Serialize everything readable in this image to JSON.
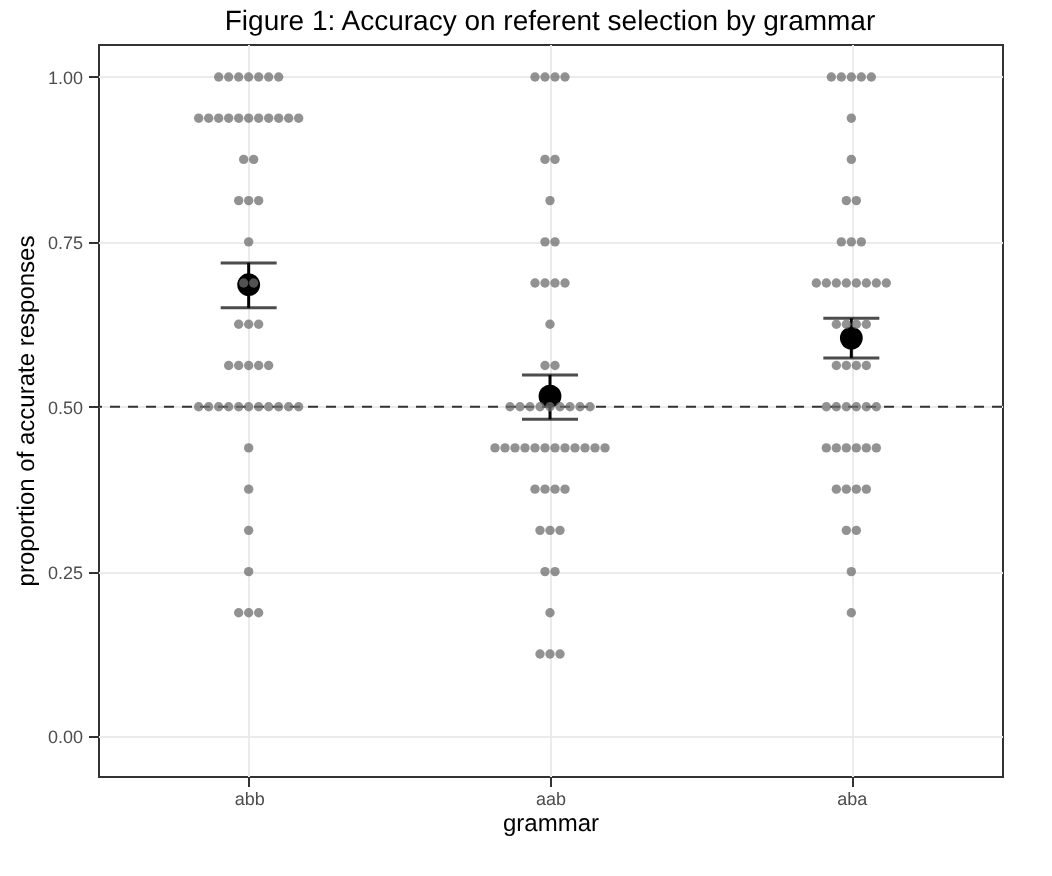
{
  "chart_data": {
    "type": "scatter",
    "title": "Figure 1: Accuracy on referent selection by grammar",
    "xlabel": "grammar",
    "ylabel": "proportion of accurate responses",
    "categories": [
      "abb",
      "aab",
      "aba"
    ],
    "ylim": [
      -0.06,
      1.05
    ],
    "yticks": [
      {
        "value": 0,
        "label": "0.00"
      },
      {
        "value": 0.25,
        "label": "0.25"
      },
      {
        "value": 0.5,
        "label": "0.50"
      },
      {
        "value": 0.75,
        "label": "0.75"
      },
      {
        "value": 1,
        "label": "1.00"
      }
    ],
    "grid": true,
    "marker": "circle",
    "ref_lines": [
      {
        "axis": "y",
        "value": 0.5,
        "line_style": "dashed",
        "color": "#333333"
      }
    ],
    "series": [
      {
        "color": "#6e6e6e",
        "x": [
          "abb",
          "abb",
          "abb",
          "abb",
          "abb",
          "abb",
          "abb",
          "abb",
          "abb",
          "abb",
          "abb",
          "abb",
          "abb",
          "abb",
          "abb",
          "abb",
          "abb",
          "abb",
          "abb",
          "abb",
          "abb",
          "abb",
          "abb",
          "abb",
          "abb",
          "abb",
          "abb",
          "abb",
          "abb",
          "abb",
          "abb",
          "abb",
          "abb",
          "abb",
          "abb",
          "abb",
          "abb",
          "abb",
          "abb",
          "abb",
          "abb",
          "abb",
          "abb",
          "abb",
          "abb",
          "abb",
          "abb",
          "abb",
          "abb",
          "abb",
          "abb",
          "abb"
        ],
        "values": [
          1,
          1,
          1,
          1,
          1,
          1,
          1,
          0.9375,
          0.9375,
          0.9375,
          0.9375,
          0.9375,
          0.9375,
          0.9375,
          0.9375,
          0.9375,
          0.9375,
          0.9375,
          0.875,
          0.875,
          0.8125,
          0.8125,
          0.8125,
          0.75,
          0.6875,
          0.6875,
          0.625,
          0.625,
          0.625,
          0.5625,
          0.5625,
          0.5625,
          0.5625,
          0.5625,
          0.5,
          0.5,
          0.5,
          0.5,
          0.5,
          0.5,
          0.5,
          0.5,
          0.5,
          0.5,
          0.5,
          0.4375,
          0.375,
          0.3125,
          0.25,
          0.1875,
          0.1875,
          0.1875
        ]
      },
      {
        "color": "#6e6e6e",
        "x": [
          "aab",
          "aab",
          "aab",
          "aab",
          "aab",
          "aab",
          "aab",
          "aab",
          "aab",
          "aab",
          "aab",
          "aab",
          "aab",
          "aab",
          "aab",
          "aab",
          "aab",
          "aab",
          "aab",
          "aab",
          "aab",
          "aab",
          "aab",
          "aab",
          "aab",
          "aab",
          "aab",
          "aab",
          "aab",
          "aab",
          "aab",
          "aab",
          "aab",
          "aab",
          "aab",
          "aab",
          "aab",
          "aab",
          "aab",
          "aab",
          "aab",
          "aab",
          "aab",
          "aab",
          "aab",
          "aab",
          "aab",
          "aab",
          "aab",
          "aab"
        ],
        "values": [
          1,
          1,
          1,
          1,
          0.875,
          0.875,
          0.8125,
          0.75,
          0.75,
          0.6875,
          0.6875,
          0.6875,
          0.6875,
          0.625,
          0.5625,
          0.5625,
          0.5,
          0.5,
          0.5,
          0.5,
          0.5,
          0.5,
          0.5,
          0.5,
          0.5,
          0.4375,
          0.4375,
          0.4375,
          0.4375,
          0.4375,
          0.4375,
          0.4375,
          0.4375,
          0.4375,
          0.4375,
          0.4375,
          0.4375,
          0.375,
          0.375,
          0.375,
          0.375,
          0.3125,
          0.3125,
          0.3125,
          0.25,
          0.25,
          0.1875,
          0.125,
          0.125,
          0.125
        ]
      },
      {
        "color": "#6e6e6e",
        "x": [
          "aba",
          "aba",
          "aba",
          "aba",
          "aba",
          "aba",
          "aba",
          "aba",
          "aba",
          "aba",
          "aba",
          "aba",
          "aba",
          "aba",
          "aba",
          "aba",
          "aba",
          "aba",
          "aba",
          "aba",
          "aba",
          "aba",
          "aba",
          "aba",
          "aba",
          "aba",
          "aba",
          "aba",
          "aba",
          "aba",
          "aba",
          "aba",
          "aba",
          "aba",
          "aba",
          "aba",
          "aba",
          "aba",
          "aba",
          "aba",
          "aba",
          "aba",
          "aba",
          "aba",
          "aba",
          "aba",
          "aba",
          "aba"
        ],
        "values": [
          1,
          1,
          1,
          1,
          1,
          0.9375,
          0.875,
          0.8125,
          0.8125,
          0.75,
          0.75,
          0.75,
          0.6875,
          0.6875,
          0.6875,
          0.6875,
          0.6875,
          0.6875,
          0.6875,
          0.6875,
          0.625,
          0.625,
          0.625,
          0.625,
          0.5625,
          0.5625,
          0.5625,
          0.5625,
          0.5,
          0.5,
          0.5,
          0.5,
          0.5,
          0.5,
          0.4375,
          0.4375,
          0.4375,
          0.4375,
          0.4375,
          0.4375,
          0.375,
          0.375,
          0.375,
          0.375,
          0.3125,
          0.3125,
          0.25,
          0.1875
        ]
      },
      {
        "color": "#000000",
        "x": [
          "abb",
          "aab",
          "aba"
        ],
        "values": [
          0.685,
          0.516,
          0.604
        ],
        "errors": [
          [
            0.65,
            0.718
          ],
          [
            0.481,
            0.548
          ],
          [
            0.574,
            0.634
          ]
        ]
      }
    ]
  }
}
